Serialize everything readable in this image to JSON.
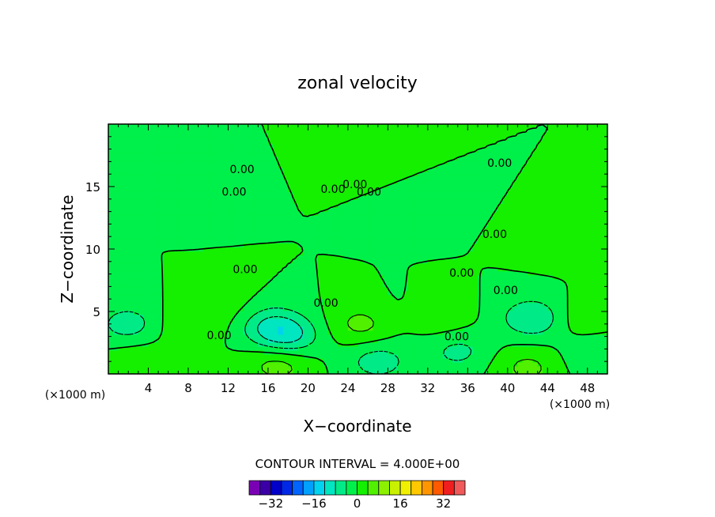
{
  "chart_data": {
    "type": "heatmap",
    "title": "zonal velocity",
    "xlabel": "X−coordinate",
    "ylabel": "Z−coordinate",
    "x_unit": "(×1000 m)",
    "xlim": [
      0,
      50
    ],
    "ylim": [
      0,
      20
    ],
    "x_ticks": [
      "4",
      "8",
      "12",
      "16",
      "20",
      "24",
      "28",
      "32",
      "36",
      "40",
      "44",
      "48"
    ],
    "y_ticks": [
      "5",
      "10",
      "15"
    ],
    "contour_interval_text": "CONTOUR INTERVAL = 4.000E+00",
    "colorbar": {
      "labels": [
        "−32",
        "−16",
        "0",
        "16",
        "32"
      ],
      "label_values": [
        -32,
        -16,
        0,
        16,
        32
      ],
      "bin_edges": [
        -40,
        -36,
        -32,
        -28,
        -24,
        -20,
        -16,
        -12,
        -8,
        -4,
        0,
        4,
        8,
        12,
        16,
        20,
        24,
        28,
        32,
        36,
        40
      ],
      "colors": [
        "#7a00b4",
        "#3a00a6",
        "#0000c8",
        "#0028e6",
        "#0064ff",
        "#00a0ff",
        "#00d2f0",
        "#00e6c0",
        "#00eb87",
        "#00f04b",
        "#14f000",
        "#50f000",
        "#8cf000",
        "#c8f000",
        "#f0f000",
        "#ffc800",
        "#ff9600",
        "#ff5a00",
        "#f01e1e",
        "#f05a5a",
        "#ff9696"
      ]
    },
    "contour_labels": [
      {
        "text": "0.00",
        "x": 13.4,
        "y": 16.4
      },
      {
        "text": "0.00",
        "x": 22.5,
        "y": 14.8
      },
      {
        "text": "0.00",
        "x": 24.7,
        "y": 15.2
      },
      {
        "text": "0.00",
        "x": 26.1,
        "y": 14.6
      },
      {
        "text": "0.00",
        "x": 39.2,
        "y": 16.9
      },
      {
        "text": "0.00",
        "x": 12.6,
        "y": 14.6
      },
      {
        "text": "0.00",
        "x": 38.7,
        "y": 11.2
      },
      {
        "text": "0.00",
        "x": 13.7,
        "y": 8.4
      },
      {
        "text": "0.00",
        "x": 35.4,
        "y": 8.1
      },
      {
        "text": "0.00",
        "x": 39.8,
        "y": 6.7
      },
      {
        "text": "0.00",
        "x": 21.8,
        "y": 5.7
      },
      {
        "text": "0.00",
        "x": 11.1,
        "y": 3.1
      },
      {
        "text": "0.00",
        "x": 34.9,
        "y": 3.0
      }
    ],
    "features": [
      {
        "x": 25.0,
        "y": 17.0,
        "v": 0.6
      },
      {
        "x": 10.0,
        "y": 15.0,
        "v": -0.6
      },
      {
        "x": 30.0,
        "y": 13.0,
        "v": -0.5
      },
      {
        "x": 45.0,
        "y": 10.0,
        "v": 0.5
      },
      {
        "x": 2.0,
        "y": 4.0,
        "v": -6.0
      },
      {
        "x": 3.0,
        "y": 1.0,
        "v": 3.0
      },
      {
        "x": 8.0,
        "y": 4.0,
        "v": 3.5
      },
      {
        "x": 13.0,
        "y": 5.0,
        "v": 2.0
      },
      {
        "x": 16.0,
        "y": 4.0,
        "v": -7.0
      },
      {
        "x": 18.0,
        "y": 3.0,
        "v": -8.5
      },
      {
        "x": 17.0,
        "y": 0.8,
        "v": 6.0
      },
      {
        "x": 25.5,
        "y": 4.0,
        "v": 5.5
      },
      {
        "x": 29.0,
        "y": 4.5,
        "v": -1.5
      },
      {
        "x": 33.0,
        "y": 4.5,
        "v": 3.0
      },
      {
        "x": 27.0,
        "y": 1.0,
        "v": -6.0
      },
      {
        "x": 35.0,
        "y": 1.8,
        "v": -5.0
      },
      {
        "x": 42.5,
        "y": 4.5,
        "v": -8.0
      },
      {
        "x": 47.5,
        "y": 4.5,
        "v": 3.0
      },
      {
        "x": 42.0,
        "y": 0.5,
        "v": 5.0
      },
      {
        "x": 49.0,
        "y": 1.5,
        "v": -4.0
      }
    ]
  }
}
